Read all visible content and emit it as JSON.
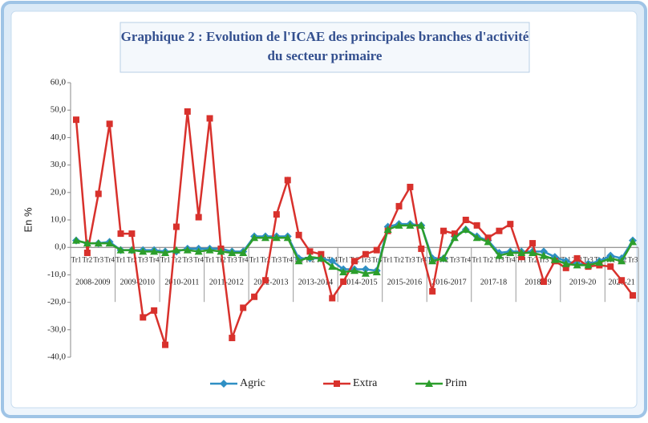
{
  "chart_data": {
    "type": "line",
    "title": [
      "Graphique 2 : Evolution de l'ICAE des principales branches d'activité",
      "du secteur primaire"
    ],
    "y_label": "En %",
    "groups": [
      {
        "label": "2008-2009",
        "categories": [
          "Tr1",
          "Tr2",
          "Tr3",
          "Tr4"
        ]
      },
      {
        "label": "2009-2010",
        "categories": [
          "Tr1",
          "Tr2",
          "Tr3",
          "Tr4"
        ]
      },
      {
        "label": "2010-2011",
        "categories": [
          "Tr1",
          "Tr2",
          "Tr3",
          "Tr4"
        ]
      },
      {
        "label": "2011-2012",
        "categories": [
          "Tr1",
          "Tr2",
          "Tr3",
          "Tr4"
        ]
      },
      {
        "label": "2012-2013",
        "categories": [
          "Tr1",
          "Tr2",
          "Tr3",
          "Tr4"
        ]
      },
      {
        "label": "2013-2014",
        "categories": [
          "Tr1",
          "Tr2",
          "Tr3",
          "Tr4"
        ]
      },
      {
        "label": "2014-2015",
        "categories": [
          "Tr1",
          "Tr2",
          "Tr3",
          "Tr4"
        ]
      },
      {
        "label": "2015-2016",
        "categories": [
          "Tr1",
          "Tr2",
          "Tr3",
          "Tr4"
        ]
      },
      {
        "label": "2016-2017",
        "categories": [
          "Tr1",
          "Tr2",
          "Tr3",
          "Tr4"
        ]
      },
      {
        "label": "2017-18",
        "categories": [
          "Tr1",
          "Tr2",
          "Tr3",
          "Tr4"
        ]
      },
      {
        "label": "2018-19",
        "categories": [
          "Tr1",
          "Tr2",
          "Tr3",
          "Tr4"
        ]
      },
      {
        "label": "2019-20",
        "categories": [
          "Tr1",
          "Tr2",
          "Tr3",
          "Tr4"
        ]
      },
      {
        "label": "2020-21",
        "categories": [
          "Tr1",
          "Tr2",
          "Tr3"
        ]
      }
    ],
    "series": [
      {
        "name": "Agric",
        "color": "#2f8fc4",
        "marker": "diamond",
        "values": [
          2.5,
          1.5,
          1.5,
          2,
          -1,
          -1,
          -1,
          -1,
          -1.5,
          -1.5,
          -0.5,
          -0.5,
          -0.5,
          -0.5,
          -1.5,
          -1.5,
          4,
          4,
          4,
          4,
          -4,
          -4,
          -4,
          -5,
          -8,
          -8,
          -8,
          -8.5,
          7.5,
          8.5,
          8.5,
          8,
          -4,
          -4,
          4,
          6.5,
          4,
          2.5,
          -2,
          -1.5,
          -1.5,
          -1.5,
          -1.5,
          -3.5,
          -5,
          -6,
          -6,
          -5,
          -3,
          -4,
          2.5
        ]
      },
      {
        "name": "Extra",
        "color": "#d8312c",
        "marker": "square",
        "values": [
          46.5,
          -2,
          19.5,
          45,
          5,
          5,
          -25.5,
          -23,
          -35.5,
          7.5,
          49.5,
          11,
          47,
          -0.5,
          -33,
          -22,
          -18,
          -12,
          12,
          24.5,
          4.5,
          -1.5,
          -2.5,
          -18.5,
          -12.5,
          -5,
          -2.5,
          -1,
          6,
          15,
          22,
          -0.5,
          -16,
          6,
          5,
          10,
          8,
          3.5,
          6,
          8.5,
          -3.5,
          1.5,
          -12.5,
          -5,
          -7.5,
          -4,
          -7,
          -6.5,
          -7,
          -12,
          -17.5
        ]
      },
      {
        "name": "Prim",
        "color": "#2c9e2c",
        "marker": "triangle",
        "values": [
          2.5,
          1.5,
          1.5,
          1.5,
          -1,
          -1,
          -1.5,
          -1.5,
          -2,
          -1,
          -1,
          -1.5,
          -1,
          -1.5,
          -2,
          -2,
          3.5,
          3.5,
          3.5,
          3.5,
          -5,
          -3.5,
          -4,
          -7,
          -9,
          -8.5,
          -9.5,
          -9,
          6.5,
          8,
          8,
          8,
          -5,
          -4,
          3.5,
          6.5,
          3.5,
          2,
          -3,
          -2,
          -2,
          -2,
          -3,
          -4.5,
          -6,
          -6.5,
          -6.5,
          -5.5,
          -4,
          -5,
          2
        ]
      }
    ],
    "ylim": [
      -40,
      60
    ],
    "yticks": [
      {
        "value": -40,
        "label": "-40,0"
      },
      {
        "value": -30,
        "label": "-30,0"
      },
      {
        "value": -20,
        "label": "-20,0"
      },
      {
        "value": -10,
        "label": "-10,0"
      },
      {
        "value": 0,
        "label": "0,0"
      },
      {
        "value": 10,
        "label": "10,0"
      },
      {
        "value": 20,
        "label": "20,0"
      },
      {
        "value": 30,
        "label": "30,0"
      },
      {
        "value": 40,
        "label": "40,0"
      },
      {
        "value": 50,
        "label": "50,0"
      },
      {
        "value": 60,
        "label": "60,0"
      }
    ],
    "legend": "bottom"
  }
}
